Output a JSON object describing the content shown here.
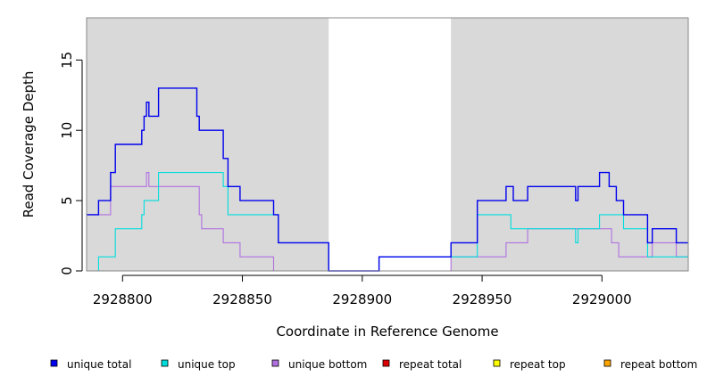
{
  "chart_data": {
    "type": "line",
    "title": "",
    "xlabel": "Coordinate in Reference Genome",
    "ylabel": "Read Coverage Depth",
    "xlim": [
      2928785,
      2929036
    ],
    "ylim": [
      0,
      18
    ],
    "x_ticks": [
      2928800,
      2928850,
      2928900,
      2928950,
      2929000
    ],
    "y_ticks": [
      0,
      5,
      10,
      15
    ],
    "x_tick_labels": [
      "2928800",
      "2928850",
      "2928900",
      "2928950",
      "2929000"
    ],
    "y_tick_labels": [
      "0",
      "5",
      "10",
      "15"
    ],
    "shaded_regions": [
      {
        "x0": 2928785,
        "x1": 2928886
      },
      {
        "x0": 2928937,
        "x1": 2929036
      }
    ],
    "region_colors": {
      "shaded": "#d9d9d9",
      "unshaded": "#ffffff"
    },
    "legend_position": "bottom",
    "series": [
      {
        "name": "unique total",
        "color": "#0000ee",
        "step": true,
        "points": [
          [
            2928785,
            4
          ],
          [
            2928790,
            5
          ],
          [
            2928795,
            7
          ],
          [
            2928797,
            9
          ],
          [
            2928808,
            10
          ],
          [
            2928809,
            11
          ],
          [
            2928810,
            12
          ],
          [
            2928811,
            11
          ],
          [
            2928815,
            13
          ],
          [
            2928831,
            11
          ],
          [
            2928832,
            10
          ],
          [
            2928842,
            8
          ],
          [
            2928844,
            6
          ],
          [
            2928849,
            5
          ],
          [
            2928863,
            4
          ],
          [
            2928865,
            2
          ],
          [
            2928886,
            0
          ],
          [
            2928907,
            1
          ],
          [
            2928937,
            2
          ],
          [
            2928948,
            5
          ],
          [
            2928960,
            6
          ],
          [
            2928963,
            5
          ],
          [
            2928969,
            6
          ],
          [
            2928989,
            5
          ],
          [
            2928990,
            6
          ],
          [
            2928999,
            7
          ],
          [
            2929003,
            6
          ],
          [
            2929006,
            5
          ],
          [
            2929009,
            4
          ],
          [
            2929019,
            2
          ],
          [
            2929021,
            3
          ],
          [
            2929031,
            2
          ],
          [
            2929036,
            2
          ]
        ]
      },
      {
        "name": "unique top",
        "color": "#00dddd",
        "step": true,
        "points": [
          [
            2928785,
            0
          ],
          [
            2928790,
            1
          ],
          [
            2928797,
            3
          ],
          [
            2928808,
            4
          ],
          [
            2928809,
            5
          ],
          [
            2928815,
            7
          ],
          [
            2928842,
            6
          ],
          [
            2928844,
            4
          ],
          [
            2928863,
            4
          ],
          [
            2928865,
            2
          ],
          [
            2928886,
            0
          ],
          [
            2928907,
            1
          ],
          [
            2928937,
            1
          ],
          [
            2928948,
            4
          ],
          [
            2928962,
            3
          ],
          [
            2928975,
            3
          ],
          [
            2928989,
            2
          ],
          [
            2928990,
            3
          ],
          [
            2928999,
            4
          ],
          [
            2929009,
            3
          ],
          [
            2929019,
            1
          ],
          [
            2929036,
            1
          ]
        ]
      },
      {
        "name": "unique bottom",
        "color": "#b070e0",
        "step": true,
        "points": [
          [
            2928785,
            4
          ],
          [
            2928795,
            6
          ],
          [
            2928810,
            7
          ],
          [
            2928811,
            6
          ],
          [
            2928832,
            4
          ],
          [
            2928833,
            3
          ],
          [
            2928842,
            2
          ],
          [
            2928849,
            1
          ],
          [
            2928863,
            0
          ],
          [
            2928937,
            1
          ],
          [
            2928960,
            2
          ],
          [
            2928969,
            3
          ],
          [
            2929004,
            2
          ],
          [
            2929007,
            1
          ],
          [
            2929021,
            2
          ],
          [
            2929031,
            1
          ],
          [
            2929036,
            1
          ]
        ]
      },
      {
        "name": "repeat total",
        "color": "#dd0000",
        "step": true,
        "points": [
          [
            2928785,
            0
          ],
          [
            2929036,
            0
          ]
        ]
      },
      {
        "name": "repeat top",
        "color": "#ffff00",
        "step": true,
        "points": [
          [
            2928785,
            0
          ],
          [
            2929036,
            0
          ]
        ]
      },
      {
        "name": "repeat bottom",
        "color": "#ffa500",
        "step": true,
        "points": [
          [
            2928785,
            0
          ],
          [
            2929036,
            0
          ]
        ]
      }
    ]
  }
}
